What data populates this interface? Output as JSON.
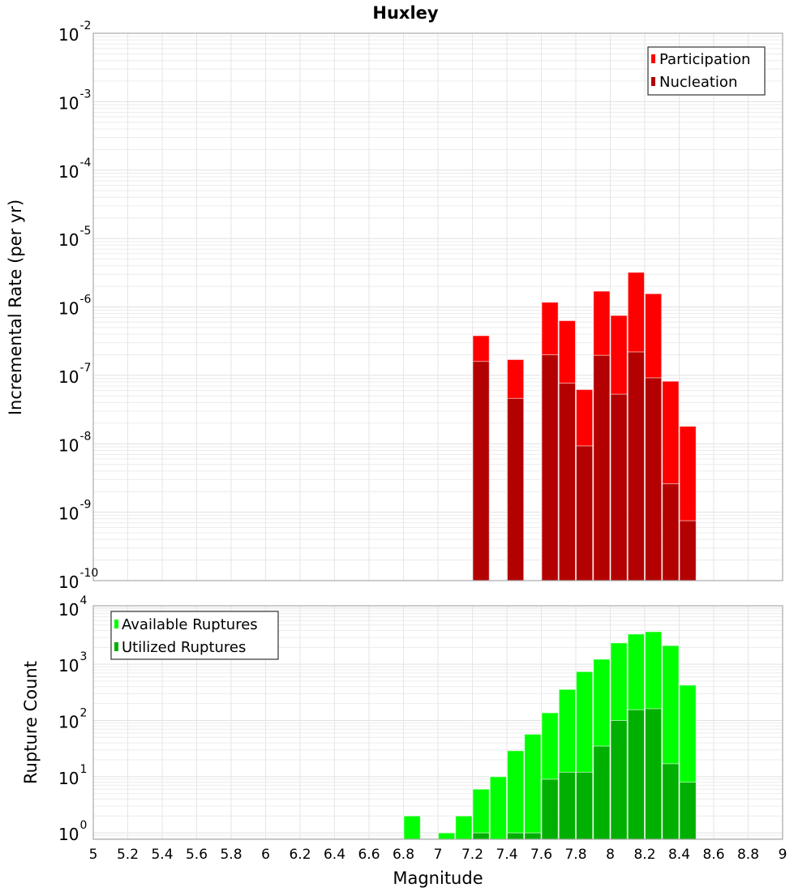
{
  "chart_data": [
    {
      "type": "bar",
      "title": "Huxley",
      "xlabel": "",
      "ylabel": "Incremental Rate (per yr)",
      "yscale": "log",
      "ylim": [
        1e-10,
        0.01
      ],
      "xlim": [
        5,
        9
      ],
      "grid": true,
      "legend_position": "top-right",
      "y_tick_exponents": [
        -2,
        -3,
        -4,
        -5,
        -6,
        -7,
        -8,
        -9,
        -10
      ],
      "x": [
        7.25,
        7.45,
        7.65,
        7.75,
        7.85,
        7.95,
        8.05,
        8.15,
        8.25,
        8.35,
        8.45
      ],
      "series": [
        {
          "name": "Participation",
          "color": "#ff0000",
          "values": [
            3.8e-07,
            1.7e-07,
            1.17e-06,
            6.3e-07,
            6.2e-08,
            1.7e-06,
            7.5e-07,
            3.2e-06,
            1.56e-06,
            8.2e-08,
            1.8e-08
          ]
        },
        {
          "name": "Nucleation",
          "color": "#b30000",
          "values": [
            1.6e-07,
            4.6e-08,
            2e-07,
            7.7e-08,
            9.3e-09,
            1.96e-07,
            5.3e-08,
            2.2e-07,
            9.2e-08,
            2.6e-09,
            7.5e-10
          ]
        }
      ]
    },
    {
      "type": "bar",
      "title": "",
      "xlabel": "Magnitude",
      "ylabel": "Rupture Count",
      "yscale": "log",
      "ylim": [
        0.77,
        11000
      ],
      "xlim": [
        5,
        9
      ],
      "grid": true,
      "legend_position": "top-left",
      "y_tick_exponents": [
        4,
        3,
        2,
        1,
        0
      ],
      "x_ticks": [
        "5",
        "5.2",
        "5.4",
        "5.6",
        "5.8",
        "6",
        "6.2",
        "6.4",
        "6.6",
        "6.8",
        "7",
        "7.2",
        "7.4",
        "7.6",
        "7.8",
        "8",
        "8.2",
        "8.4",
        "8.6",
        "8.8",
        "9"
      ],
      "x": [
        6.85,
        7.05,
        7.15,
        7.25,
        7.35,
        7.45,
        7.55,
        7.65,
        7.75,
        7.85,
        7.95,
        8.05,
        8.15,
        8.25,
        8.35,
        8.45
      ],
      "series": [
        {
          "name": "Available Ruptures",
          "color": "#00ff00",
          "values": [
            2,
            1,
            2,
            6,
            10,
            29,
            57,
            137,
            357,
            740,
            1230,
            2400,
            3450,
            3800,
            2150,
            425
          ]
        },
        {
          "name": "Utilized Ruptures",
          "color": "#00b000",
          "values": [
            0,
            0,
            0,
            1,
            0,
            1,
            1,
            9,
            12,
            12,
            35,
            100,
            155,
            162,
            17,
            8
          ]
        }
      ]
    }
  ]
}
